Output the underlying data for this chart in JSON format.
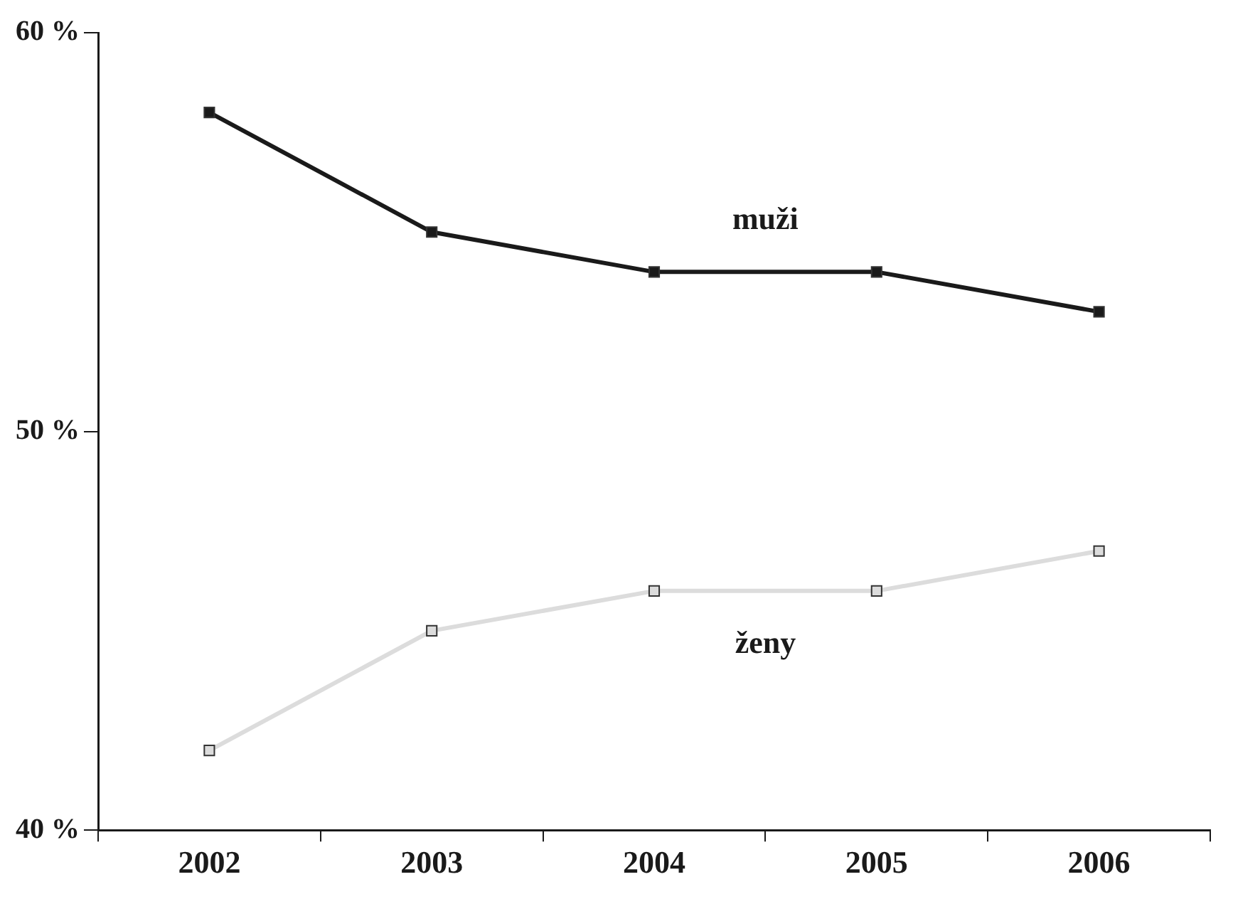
{
  "chart_data": {
    "type": "line",
    "categories": [
      "2002",
      "2003",
      "2004",
      "2005",
      "2006"
    ],
    "series": [
      {
        "name": "muži",
        "color": "#1a1a1a",
        "values": [
          58,
          55,
          54,
          54,
          53
        ]
      },
      {
        "name": "ženy",
        "color": "#dcdcdc",
        "values": [
          42,
          45,
          46,
          46,
          47
        ]
      }
    ],
    "ylim": [
      40,
      60
    ],
    "yticks": [
      {
        "value": 40,
        "label": "40 %"
      },
      {
        "value": 50,
        "label": "50 %"
      },
      {
        "value": 60,
        "label": "60 %"
      }
    ],
    "grid": false,
    "legend": false,
    "marker": "square",
    "line_style": "solid"
  }
}
